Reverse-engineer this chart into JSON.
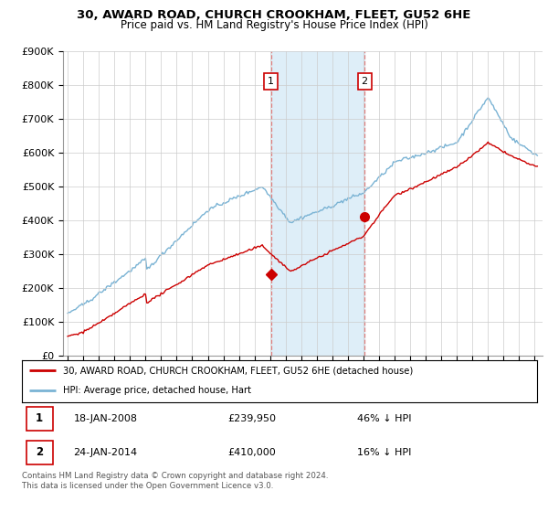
{
  "title": "30, AWARD ROAD, CHURCH CROOKHAM, FLEET, GU52 6HE",
  "subtitle": "Price paid vs. HM Land Registry's House Price Index (HPI)",
  "ylim": [
    0,
    900000
  ],
  "yticks": [
    0,
    100000,
    200000,
    300000,
    400000,
    500000,
    600000,
    700000,
    800000,
    900000
  ],
  "ytick_labels": [
    "£0",
    "£100K",
    "£200K",
    "£300K",
    "£400K",
    "£500K",
    "£600K",
    "£700K",
    "£800K",
    "£900K"
  ],
  "hpi_color": "#7ab3d4",
  "price_color": "#cc0000",
  "vline_color": "#e08080",
  "highlight_color": "#deeef8",
  "sale1_date_x": 2008.05,
  "sale1_price": 239950,
  "sale1_label": "1",
  "sale2_date_x": 2014.07,
  "sale2_price": 410000,
  "sale2_label": "2",
  "highlight_start": 2008.05,
  "highlight_end": 2014.07,
  "legend_line1": "30, AWARD ROAD, CHURCH CROOKHAM, FLEET, GU52 6HE (detached house)",
  "legend_line2": "HPI: Average price, detached house, Hart",
  "table_row1_num": "1",
  "table_row1_date": "18-JAN-2008",
  "table_row1_price": "£239,950",
  "table_row1_hpi": "46% ↓ HPI",
  "table_row2_num": "2",
  "table_row2_date": "24-JAN-2014",
  "table_row2_price": "£410,000",
  "table_row2_hpi": "16% ↓ HPI",
  "footer": "Contains HM Land Registry data © Crown copyright and database right 2024.\nThis data is licensed under the Open Government Licence v3.0.",
  "background_color": "#ffffff",
  "grid_color": "#cccccc",
  "xlim_left": 1994.7,
  "xlim_right": 2025.5
}
